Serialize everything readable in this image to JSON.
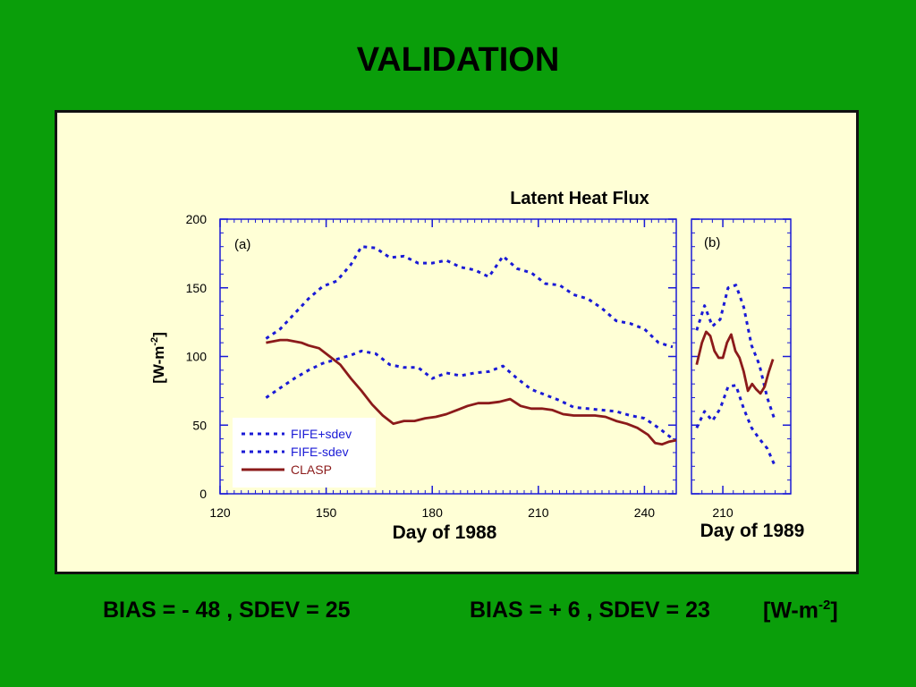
{
  "slide": {
    "title": "VALIDATION",
    "stats_left": "BIAS = - 48 , SDEV = 25",
    "stats_right": "BIAS = + 6 , SDEV = 23",
    "units_prefix": "[W-m",
    "units_sup": "-2",
    "units_suffix": "]"
  },
  "colors": {
    "background": "#0a9e0a",
    "panel": "#ffffd6",
    "sdev": "#1a1ad6",
    "clasp": "#8b1a1a"
  },
  "chart_data": [
    {
      "type": "line",
      "title": "Latent Heat Flux",
      "panel_label": "(a)",
      "xlabel": "Day of 1988",
      "ylabel": "[W-m -2 ]",
      "ylabel_main": "[W-m",
      "ylabel_sup": "-2",
      "ylabel_end": "]",
      "xlim": [
        120,
        249
      ],
      "ylim": [
        0,
        200
      ],
      "xticks": [
        120,
        150,
        180,
        210,
        240
      ],
      "yticks": [
        0,
        50,
        100,
        150,
        200
      ],
      "legend": [
        "FIFE+sdev",
        "FIFE-sdev",
        "CLASP"
      ],
      "legend_position": "bottom-left",
      "series": [
        {
          "name": "FIFE+sdev",
          "style": "dotted",
          "color": "#1a1ad6",
          "x": [
            133,
            137,
            141,
            145,
            149,
            153,
            157,
            160,
            164,
            168,
            172,
            176,
            180,
            184,
            188,
            192,
            196,
            200,
            204,
            208,
            212,
            216,
            220,
            224,
            228,
            232,
            236,
            240,
            244,
            248
          ],
          "y": [
            113,
            120,
            131,
            142,
            151,
            155,
            167,
            180,
            179,
            172,
            173,
            168,
            168,
            170,
            165,
            163,
            158,
            173,
            164,
            161,
            153,
            152,
            145,
            142,
            135,
            126,
            124,
            120,
            110,
            107
          ]
        },
        {
          "name": "FIFE-sdev",
          "style": "dotted",
          "color": "#1a1ad6",
          "x": [
            133,
            137,
            141,
            145,
            149,
            153,
            157,
            160,
            164,
            168,
            172,
            176,
            180,
            184,
            188,
            192,
            196,
            200,
            204,
            208,
            212,
            216,
            220,
            224,
            228,
            232,
            236,
            240,
            244,
            248
          ],
          "y": [
            70,
            77,
            84,
            90,
            95,
            98,
            101,
            104,
            102,
            94,
            92,
            92,
            84,
            88,
            86,
            88,
            89,
            93,
            84,
            76,
            72,
            68,
            63,
            62,
            61,
            60,
            57,
            55,
            48,
            40
          ]
        },
        {
          "name": "CLASP",
          "style": "solid",
          "color": "#8b1a1a",
          "x": [
            133,
            135,
            137,
            139,
            141,
            143,
            145,
            148,
            151,
            154,
            157,
            160,
            163,
            166,
            169,
            172,
            175,
            178,
            181,
            184,
            187,
            190,
            193,
            196,
            199,
            202,
            205,
            208,
            211,
            214,
            217,
            220,
            223,
            226,
            229,
            232,
            235,
            238,
            241,
            243,
            245,
            247,
            249
          ],
          "y": [
            110,
            111,
            112,
            112,
            111,
            110,
            108,
            106,
            100,
            94,
            84,
            75,
            65,
            57,
            51,
            53,
            53,
            55,
            56,
            58,
            61,
            64,
            66,
            66,
            67,
            69,
            64,
            62,
            62,
            61,
            58,
            57,
            57,
            57,
            56,
            53,
            51,
            48,
            43,
            37,
            36,
            38,
            39
          ]
        }
      ]
    },
    {
      "type": "line",
      "panel_label": "(b)",
      "xlabel": "Day of 1989",
      "xlim": [
        204,
        223
      ],
      "ylim": [
        0,
        200
      ],
      "xticks": [
        210
      ],
      "series": [
        {
          "name": "FIFE+sdev",
          "style": "dotted",
          "color": "#1a1ad6",
          "x": [
            205,
            206.5,
            208,
            209.5,
            211,
            212.5,
            214,
            215.5,
            217,
            218.5,
            220
          ],
          "y": [
            119,
            137,
            122,
            127,
            150,
            152,
            136,
            108,
            94,
            70,
            53
          ]
        },
        {
          "name": "FIFE-sdev",
          "style": "dotted",
          "color": "#1a1ad6",
          "x": [
            205,
            206.5,
            208,
            209.5,
            211,
            212.5,
            214,
            215.5,
            217,
            218.5,
            220
          ],
          "y": [
            48,
            60,
            53,
            62,
            78,
            79,
            62,
            48,
            40,
            33,
            20
          ]
        },
        {
          "name": "CLASP",
          "style": "solid",
          "color": "#8b1a1a",
          "x": [
            205,
            206,
            206.8,
            207.6,
            208.4,
            209.2,
            210,
            210.8,
            211.6,
            212.4,
            213.2,
            214,
            214.8,
            215.6,
            216.4,
            217.2,
            218,
            218.8,
            219.6
          ],
          "y": [
            94,
            110,
            118,
            115,
            104,
            99,
            99,
            110,
            116,
            104,
            99,
            89,
            75,
            80,
            76,
            73,
            78,
            89,
            98
          ]
        }
      ]
    }
  ]
}
